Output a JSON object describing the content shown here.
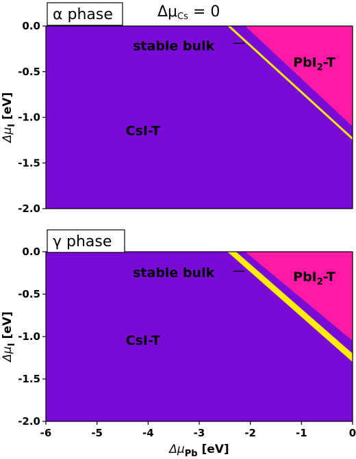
{
  "top_title_base": "Δμ",
  "top_title_sub": "Cs",
  "top_title_suffix": " = 0",
  "colors": {
    "csi_t": "#7a0bd6",
    "pbi2_t": "#ff1aa6",
    "stable_bulk": "#ffee00",
    "panel_border": "#000000"
  },
  "chart_data": [
    {
      "type": "area",
      "title": "α phase",
      "xlim": [
        -6,
        0
      ],
      "ylim": [
        -2.0,
        0.0
      ],
      "x_ticks": [],
      "y_ticks": [
        "0.0",
        "-0.5",
        "-1.0",
        "-1.5",
        "-2.0"
      ],
      "y_tick_values": [
        0.0,
        -0.5,
        -1.0,
        -1.5,
        -2.0
      ],
      "ylabel_base": "Δμ",
      "ylabel_sub": "I",
      "ylabel_unit": " [eV]",
      "regions": [
        {
          "name": "CsI-T",
          "label_base": "CsI-T",
          "label_sub": "",
          "label_at": [
            -4.1,
            -1.15
          ]
        },
        {
          "name": "PbI2-T",
          "label_base": "PbI",
          "label_sub": "2",
          "label_suffix": "-T",
          "label_at": [
            -0.75,
            -0.4
          ],
          "boundary": [
            [
              -2.1,
              0.0
            ],
            [
              0.0,
              0.0
            ],
            [
              0.0,
              -1.1
            ]
          ]
        },
        {
          "name": "stable bulk",
          "label_base": "stable bulk",
          "label_at": [
            -3.5,
            -0.22
          ],
          "band": [
            [
              -2.45,
              0.0
            ],
            [
              -2.39,
              0.0
            ],
            [
              0.0,
              -1.22
            ],
            [
              0.0,
              -1.25
            ]
          ]
        }
      ],
      "annotations": [
        {
          "text": "stable bulk",
          "pointer_from": [
            -2.4,
            -0.19
          ],
          "pointer_to": [
            -2.05,
            -0.19
          ]
        }
      ]
    },
    {
      "type": "area",
      "title": "γ phase",
      "xlim": [
        -6,
        0
      ],
      "ylim": [
        -2.0,
        0.0
      ],
      "x_ticks": [
        "-6",
        "-5",
        "-4",
        "-3",
        "-2",
        "-1",
        "0"
      ],
      "x_tick_values": [
        -6,
        -5,
        -4,
        -3,
        -2,
        -1,
        0
      ],
      "y_ticks": [
        "0.0",
        "-0.5",
        "-1.0",
        "-1.5",
        "-2.0"
      ],
      "y_tick_values": [
        0.0,
        -0.5,
        -1.0,
        -1.5,
        -2.0
      ],
      "xlabel_base": "Δμ",
      "xlabel_sub": "Pb",
      "xlabel_unit": " [eV]",
      "ylabel_base": "Δμ",
      "ylabel_sub": "I",
      "ylabel_unit": " [eV]",
      "regions": [
        {
          "name": "CsI-T",
          "label_base": "CsI-T",
          "label_sub": "",
          "label_at": [
            -4.1,
            -1.05
          ]
        },
        {
          "name": "PbI2-T",
          "label_base": "PbI",
          "label_sub": "2",
          "label_suffix": "-T",
          "label_at": [
            -0.75,
            -0.3
          ],
          "boundary": [
            [
              -2.1,
              0.0
            ],
            [
              0.0,
              0.0
            ],
            [
              0.0,
              -1.05
            ]
          ]
        },
        {
          "name": "stable bulk",
          "label_base": "stable bulk",
          "label_at": [
            -3.5,
            -0.25
          ],
          "band": [
            [
              -2.45,
              0.0
            ],
            [
              -2.28,
              0.0
            ],
            [
              0.0,
              -1.2
            ],
            [
              0.0,
              -1.3
            ]
          ]
        }
      ],
      "annotations": [
        {
          "text": "stable bulk",
          "pointer_from": [
            -2.4,
            -0.23
          ],
          "pointer_to": [
            -2.05,
            -0.23
          ]
        }
      ]
    }
  ]
}
